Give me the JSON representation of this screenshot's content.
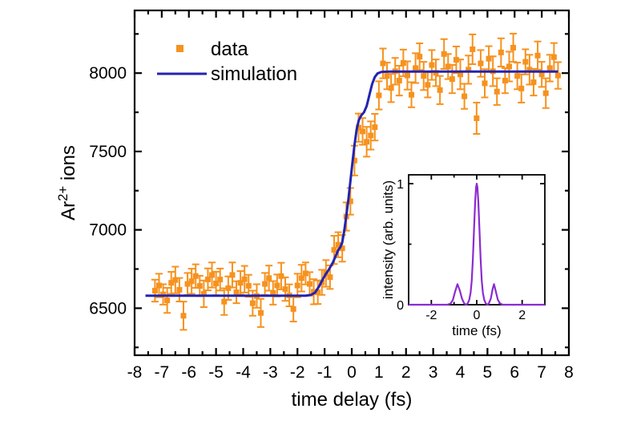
{
  "figure": {
    "description": "Pump-probe ion yield step scan with simulation and pulse-intensity inset"
  },
  "chart_data": {
    "main": {
      "type": "scatter-errorbar+line",
      "xlabel": "time delay (fs)",
      "ylabel_parts": {
        "base": "Ar",
        "superscript": "2+",
        "rest": " ions"
      },
      "xlim": [
        -8,
        8
      ],
      "ylim": [
        6200,
        8400
      ],
      "xticks_major": [
        -8,
        -7,
        -6,
        -5,
        -4,
        -3,
        -2,
        -1,
        0,
        1,
        2,
        3,
        4,
        5,
        6,
        7,
        8
      ],
      "xticks_minor": [
        -7.5,
        -6.5,
        -5.5,
        -4.5,
        -3.5,
        -2.5,
        -1.5,
        -0.5,
        0.5,
        1.5,
        2.5,
        3.5,
        4.5,
        5.5,
        6.5,
        7.5
      ],
      "yticks_major": [
        6500,
        7000,
        7500,
        8000
      ],
      "yticks_minor": [
        6250,
        6750,
        7250,
        7750,
        8250
      ],
      "grid": false,
      "legend_position": "upper-left-inside",
      "legend": [
        {
          "label": "data",
          "type": "marker",
          "color": "#f6921e"
        },
        {
          "label": "simulation",
          "type": "line",
          "color": "#2323b2"
        }
      ],
      "series": [
        {
          "name": "data",
          "type": "scatter-errorbar",
          "color": "#f6921e",
          "points": [
            [
              -7.25,
              6612,
              70
            ],
            [
              -7.1,
              6645,
              75
            ],
            [
              -6.95,
              6588,
              65
            ],
            [
              -6.8,
              6550,
              80
            ],
            [
              -6.65,
              6662,
              70
            ],
            [
              -6.5,
              6680,
              85
            ],
            [
              -6.35,
              6618,
              75
            ],
            [
              -6.2,
              6452,
              90
            ],
            [
              -6.05,
              6655,
              70
            ],
            [
              -5.9,
              6672,
              80
            ],
            [
              -5.75,
              6705,
              75
            ],
            [
              -5.6,
              6642,
              65
            ],
            [
              -5.45,
              6592,
              85
            ],
            [
              -5.3,
              6684,
              70
            ],
            [
              -5.15,
              6712,
              80
            ],
            [
              -5.0,
              6658,
              75
            ],
            [
              -4.85,
              6683,
              70
            ],
            [
              -4.7,
              6542,
              85
            ],
            [
              -4.55,
              6628,
              75
            ],
            [
              -4.4,
              6712,
              80
            ],
            [
              -4.25,
              6602,
              70
            ],
            [
              -4.1,
              6662,
              75
            ],
            [
              -3.95,
              6685,
              85
            ],
            [
              -3.8,
              6643,
              70
            ],
            [
              -3.65,
              6532,
              80
            ],
            [
              -3.5,
              6578,
              75
            ],
            [
              -3.35,
              6470,
              90
            ],
            [
              -3.2,
              6655,
              70
            ],
            [
              -3.05,
              6692,
              80
            ],
            [
              -2.9,
              6598,
              75
            ],
            [
              -2.75,
              6645,
              70
            ],
            [
              -2.6,
              6705,
              85
            ],
            [
              -2.45,
              6622,
              75
            ],
            [
              -2.3,
              6582,
              70
            ],
            [
              -2.15,
              6495,
              80
            ],
            [
              -2.0,
              6645,
              75
            ],
            [
              -1.85,
              6692,
              85
            ],
            [
              -1.7,
              6722,
              70
            ],
            [
              -1.55,
              6655,
              75
            ],
            [
              -1.4,
              6605,
              80
            ],
            [
              -1.25,
              6602,
              75
            ],
            [
              -1.1,
              6665,
              80
            ],
            [
              -0.95,
              6722,
              85
            ],
            [
              -0.8,
              6698,
              75
            ],
            [
              -0.65,
              6872,
              90
            ],
            [
              -0.5,
              6905,
              80
            ],
            [
              -0.35,
              6882,
              85
            ],
            [
              -0.2,
              7085,
              90
            ],
            [
              -0.05,
              7182,
              85
            ],
            [
              0.1,
              7442,
              95
            ],
            [
              0.25,
              7652,
              90
            ],
            [
              0.4,
              7628,
              85
            ],
            [
              0.55,
              7562,
              95
            ],
            [
              0.7,
              7602,
              90
            ],
            [
              0.85,
              7655,
              85
            ],
            [
              1.0,
              7858,
              90
            ],
            [
              1.15,
              8062,
              95
            ],
            [
              1.3,
              7982,
              85
            ],
            [
              1.45,
              7905,
              90
            ],
            [
              1.6,
              8012,
              85
            ],
            [
              1.75,
              7952,
              95
            ],
            [
              1.9,
              8065,
              85
            ],
            [
              2.05,
              7985,
              90
            ],
            [
              2.2,
              7862,
              80
            ],
            [
              2.35,
              8032,
              95
            ],
            [
              2.5,
              8105,
              85
            ],
            [
              2.65,
              7982,
              90
            ],
            [
              2.8,
              7925,
              80
            ],
            [
              2.95,
              8052,
              95
            ],
            [
              3.1,
              8002,
              85
            ],
            [
              3.25,
              7892,
              90
            ],
            [
              3.4,
              8122,
              95
            ],
            [
              3.55,
              8042,
              80
            ],
            [
              3.7,
              7962,
              90
            ],
            [
              3.85,
              8085,
              85
            ],
            [
              4.0,
              7992,
              95
            ],
            [
              4.15,
              7852,
              80
            ],
            [
              4.3,
              8022,
              90
            ],
            [
              4.45,
              8152,
              95
            ],
            [
              4.6,
              7712,
              100
            ],
            [
              4.75,
              8062,
              85
            ],
            [
              4.9,
              7935,
              90
            ],
            [
              5.05,
              8092,
              80
            ],
            [
              5.2,
              8012,
              95
            ],
            [
              5.35,
              7882,
              85
            ],
            [
              5.5,
              8132,
              90
            ],
            [
              5.65,
              7952,
              80
            ],
            [
              5.8,
              8042,
              95
            ],
            [
              5.95,
              8162,
              90
            ],
            [
              6.1,
              7982,
              85
            ],
            [
              6.25,
              7902,
              90
            ],
            [
              6.4,
              8072,
              80
            ],
            [
              6.55,
              8022,
              95
            ],
            [
              6.7,
              7942,
              85
            ],
            [
              6.85,
              8112,
              90
            ],
            [
              7.0,
              7992,
              80
            ],
            [
              7.15,
              7872,
              95
            ],
            [
              7.3,
              8032,
              85
            ],
            [
              7.45,
              8102,
              90
            ],
            [
              7.6,
              7985,
              85
            ]
          ]
        },
        {
          "name": "simulation",
          "type": "line",
          "color": "#2323b2",
          "points": [
            [
              -7.6,
              6580
            ],
            [
              -1.7,
              6580
            ],
            [
              -1.5,
              6585
            ],
            [
              -1.35,
              6600
            ],
            [
              -1.2,
              6640
            ],
            [
              -1.05,
              6690
            ],
            [
              -0.95,
              6720
            ],
            [
              -0.85,
              6745
            ],
            [
              -0.7,
              6790
            ],
            [
              -0.6,
              6830
            ],
            [
              -0.5,
              6870
            ],
            [
              -0.42,
              6890
            ],
            [
              -0.35,
              6920
            ],
            [
              -0.28,
              6990
            ],
            [
              -0.2,
              7090
            ],
            [
              -0.12,
              7200
            ],
            [
              -0.05,
              7310
            ],
            [
              0.02,
              7420
            ],
            [
              0.1,
              7540
            ],
            [
              0.18,
              7640
            ],
            [
              0.26,
              7700
            ],
            [
              0.35,
              7730
            ],
            [
              0.45,
              7750
            ],
            [
              0.55,
              7790
            ],
            [
              0.65,
              7860
            ],
            [
              0.75,
              7930
            ],
            [
              0.85,
              7975
            ],
            [
              0.95,
              7998
            ],
            [
              1.1,
              8008
            ],
            [
              1.4,
              8010
            ],
            [
              7.6,
              8010
            ]
          ]
        }
      ]
    },
    "inset": {
      "type": "line",
      "xlabel": "time (fs)",
      "ylabel": "intensity (arb. units)",
      "xlim": [
        -3,
        3
      ],
      "ylim": [
        0,
        1.073
      ],
      "xticks_major": [
        -2,
        0,
        2
      ],
      "xticks_minor": [
        -1,
        1
      ],
      "yticks_major": [
        0,
        1
      ],
      "yticks_minor": [
        0.5
      ],
      "color": "#8b2bd1",
      "points": [
        [
          -3,
          0
        ],
        [
          -1.3,
          0
        ],
        [
          -1.15,
          0.01
        ],
        [
          -1.05,
          0.04
        ],
        [
          -0.95,
          0.11
        ],
        [
          -0.85,
          0.17
        ],
        [
          -0.75,
          0.12
        ],
        [
          -0.65,
          0.05
        ],
        [
          -0.55,
          0.01
        ],
        [
          -0.47,
          0
        ],
        [
          -0.4,
          0.01
        ],
        [
          -0.33,
          0.04
        ],
        [
          -0.27,
          0.1
        ],
        [
          -0.22,
          0.2
        ],
        [
          -0.17,
          0.38
        ],
        [
          -0.12,
          0.62
        ],
        [
          -0.07,
          0.85
        ],
        [
          -0.03,
          0.97
        ],
        [
          0.0,
          1.0
        ],
        [
          0.03,
          0.97
        ],
        [
          0.07,
          0.85
        ],
        [
          0.12,
          0.62
        ],
        [
          0.17,
          0.38
        ],
        [
          0.22,
          0.2
        ],
        [
          0.27,
          0.1
        ],
        [
          0.33,
          0.04
        ],
        [
          0.4,
          0.01
        ],
        [
          0.47,
          0
        ],
        [
          0.53,
          0.01
        ],
        [
          0.62,
          0.05
        ],
        [
          0.7,
          0.13
        ],
        [
          0.76,
          0.17
        ],
        [
          0.84,
          0.11
        ],
        [
          0.93,
          0.04
        ],
        [
          1.03,
          0.01
        ],
        [
          1.15,
          0
        ],
        [
          3,
          0
        ]
      ]
    },
    "style": {
      "frame_color": "#000000",
      "background": "#ffffff",
      "data_color": "#f6921e",
      "simulation_color": "#2323b2",
      "inset_curve_color": "#8b2bd1"
    }
  }
}
